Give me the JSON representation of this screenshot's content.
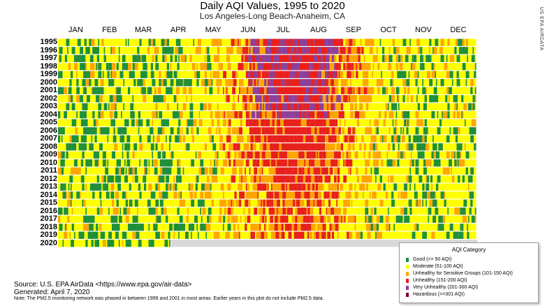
{
  "chart_data": {
    "type": "heatmap",
    "title": "Daily AQI Values, 1995 to 2020",
    "subtitle": "Los Angeles-Long Beach-Anaheim, CA",
    "credit": "US EPA AIRDATA",
    "months": [
      "JAN",
      "FEB",
      "MAR",
      "APR",
      "MAY",
      "JUN",
      "JUL",
      "AUG",
      "SEP",
      "OCT",
      "NOV",
      "DEC"
    ],
    "years": [
      "1995",
      "1996",
      "1997",
      "1998",
      "1999",
      "2000",
      "2001",
      "2002",
      "2003",
      "2004",
      "2005",
      "2006",
      "2007",
      "2008",
      "2009",
      "2010",
      "2011",
      "2012",
      "2013",
      "2014",
      "2015",
      "2016",
      "2017",
      "2018",
      "2019",
      "2020"
    ],
    "categories": [
      {
        "label": "Good (<= 50 AQI)",
        "color": "#1f8f3a"
      },
      {
        "label": "Moderate (51-100 AQI)",
        "color": "#ffff00"
      },
      {
        "label": "Unhealthy for Sensitive Groups (101-150 AQI)",
        "color": "#ffa500"
      },
      {
        "label": "Unhealthy (151-200 AQI)",
        "color": "#e8201c"
      },
      {
        "label": "Very Unhealthy (201-300 AQI)",
        "color": "#8f3f97"
      },
      {
        "label": "Hazardous (>=301 AQI)",
        "color": "#7e0023"
      }
    ],
    "partial_year": {
      "year": "2020",
      "last_day": 98
    },
    "legend_title": "AQI Category",
    "legend_position": "bottom-right"
  },
  "footer": {
    "source": "Source: U.S. EPA AirData <https://www.epa.gov/air-data>",
    "generated": "Generated:      April 7, 2020",
    "note": "Note: The PM2.5 monitoring network was phased in between 1999 and 2001 in most areas. Earlier years in this plot do not include PM2.5 data."
  }
}
